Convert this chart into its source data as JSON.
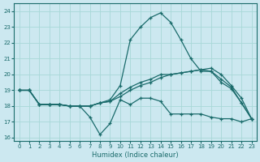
{
  "xlabel": "Humidex (Indice chaleur)",
  "bg_color": "#cce8f0",
  "grid_color": "#a8d8d8",
  "line_color": "#1a6b6b",
  "xlim": [
    -0.5,
    23.5
  ],
  "ylim": [
    15.8,
    24.5
  ],
  "yticks": [
    16,
    17,
    18,
    19,
    20,
    21,
    22,
    23,
    24
  ],
  "xticks": [
    0,
    1,
    2,
    3,
    4,
    5,
    6,
    7,
    8,
    9,
    10,
    11,
    12,
    13,
    14,
    15,
    16,
    17,
    18,
    19,
    20,
    21,
    22,
    23
  ],
  "line_spike_x": [
    0,
    1,
    2,
    3,
    4,
    5,
    6,
    7,
    8,
    9,
    10,
    11,
    12,
    13,
    14,
    15,
    16,
    17,
    18,
    19,
    20,
    21,
    22,
    23
  ],
  "line_spike_y": [
    19.0,
    19.0,
    18.1,
    18.1,
    18.1,
    18.0,
    18.0,
    18.0,
    18.2,
    18.4,
    19.3,
    22.2,
    23.0,
    23.6,
    23.9,
    23.3,
    22.2,
    21.0,
    20.2,
    20.2,
    19.5,
    19.1,
    18.2,
    17.2
  ],
  "line_mid1_x": [
    0,
    1,
    2,
    3,
    4,
    5,
    6,
    7,
    8,
    9,
    10,
    11,
    12,
    13,
    14,
    15,
    16,
    17,
    18,
    19,
    20,
    21,
    22,
    23
  ],
  "line_mid1_y": [
    19.0,
    19.0,
    18.1,
    18.1,
    18.1,
    18.0,
    18.0,
    18.0,
    18.2,
    18.3,
    18.6,
    19.0,
    19.3,
    19.5,
    19.8,
    20.0,
    20.1,
    20.2,
    20.3,
    20.2,
    19.7,
    19.2,
    18.2,
    17.2
  ],
  "line_mid2_x": [
    0,
    1,
    2,
    3,
    4,
    5,
    6,
    7,
    8,
    9,
    10,
    11,
    12,
    13,
    14,
    15,
    16,
    17,
    18,
    19,
    20,
    21,
    22,
    23
  ],
  "line_mid2_y": [
    19.0,
    19.0,
    18.1,
    18.1,
    18.1,
    18.0,
    18.0,
    18.0,
    18.2,
    18.3,
    18.8,
    19.2,
    19.5,
    19.7,
    20.0,
    20.0,
    20.1,
    20.2,
    20.3,
    20.4,
    20.0,
    19.3,
    18.5,
    17.2
  ],
  "line_low_x": [
    0,
    1,
    2,
    3,
    4,
    5,
    6,
    7,
    8,
    9,
    10,
    11,
    12,
    13,
    14,
    15,
    16,
    17,
    18,
    19,
    20,
    21,
    22,
    23
  ],
  "line_low_y": [
    19.0,
    19.0,
    18.1,
    18.1,
    18.1,
    18.0,
    18.0,
    17.3,
    16.2,
    16.9,
    18.4,
    18.1,
    18.5,
    18.5,
    18.3,
    17.5,
    17.5,
    17.5,
    17.5,
    17.3,
    17.2,
    17.2,
    17.0,
    17.2
  ]
}
